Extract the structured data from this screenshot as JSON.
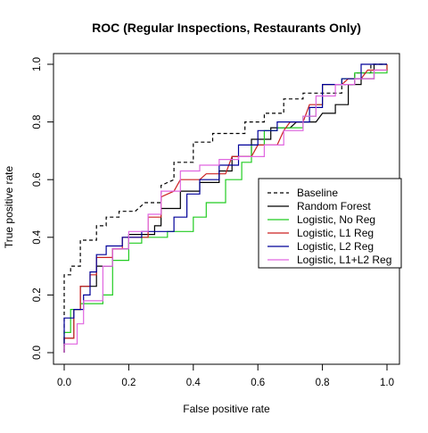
{
  "chart_data": {
    "type": "line",
    "title": "ROC (Regular Inspections, Restaurants Only)",
    "xlabel": "False positive rate",
    "ylabel": "True positive rate",
    "xlim": [
      0,
      1
    ],
    "ylim": [
      0,
      1
    ],
    "xticks": [
      "0.0",
      "0.2",
      "0.4",
      "0.6",
      "0.8",
      "1.0"
    ],
    "yticks": [
      "0.0",
      "0.2",
      "0.4",
      "0.6",
      "0.8",
      "1.0"
    ],
    "legend_position": "right",
    "grid": false,
    "series": [
      {
        "name": "Baseline",
        "color": "#000000",
        "dash": true,
        "points": [
          [
            0,
            0
          ],
          [
            0,
            0.27
          ],
          [
            0.02,
            0.27
          ],
          [
            0.02,
            0.3
          ],
          [
            0.05,
            0.3
          ],
          [
            0.05,
            0.39
          ],
          [
            0.1,
            0.39
          ],
          [
            0.1,
            0.44
          ],
          [
            0.13,
            0.44
          ],
          [
            0.13,
            0.47
          ],
          [
            0.17,
            0.47
          ],
          [
            0.17,
            0.49
          ],
          [
            0.22,
            0.49
          ],
          [
            0.25,
            0.52
          ],
          [
            0.3,
            0.52
          ],
          [
            0.3,
            0.58
          ],
          [
            0.34,
            0.6
          ],
          [
            0.34,
            0.66
          ],
          [
            0.4,
            0.66
          ],
          [
            0.4,
            0.73
          ],
          [
            0.46,
            0.73
          ],
          [
            0.46,
            0.76
          ],
          [
            0.56,
            0.76
          ],
          [
            0.56,
            0.8
          ],
          [
            0.62,
            0.8
          ],
          [
            0.62,
            0.83
          ],
          [
            0.68,
            0.83
          ],
          [
            0.68,
            0.88
          ],
          [
            0.74,
            0.88
          ],
          [
            0.74,
            0.9
          ],
          [
            0.86,
            0.9
          ],
          [
            0.86,
            0.93
          ],
          [
            0.9,
            0.93
          ],
          [
            0.9,
            0.97
          ],
          [
            0.95,
            0.97
          ],
          [
            0.95,
            1.0
          ],
          [
            1.0,
            1.0
          ]
        ]
      },
      {
        "name": "Random Forest",
        "color": "#000000",
        "dash": false,
        "points": [
          [
            0,
            0
          ],
          [
            0,
            0.05
          ],
          [
            0.03,
            0.05
          ],
          [
            0.03,
            0.15
          ],
          [
            0.05,
            0.15
          ],
          [
            0.05,
            0.23
          ],
          [
            0.1,
            0.23
          ],
          [
            0.1,
            0.3
          ],
          [
            0.15,
            0.3
          ],
          [
            0.15,
            0.36
          ],
          [
            0.2,
            0.36
          ],
          [
            0.2,
            0.41
          ],
          [
            0.28,
            0.41
          ],
          [
            0.28,
            0.44
          ],
          [
            0.3,
            0.44
          ],
          [
            0.3,
            0.5
          ],
          [
            0.36,
            0.5
          ],
          [
            0.36,
            0.56
          ],
          [
            0.42,
            0.56
          ],
          [
            0.42,
            0.59
          ],
          [
            0.48,
            0.59
          ],
          [
            0.48,
            0.63
          ],
          [
            0.52,
            0.63
          ],
          [
            0.52,
            0.68
          ],
          [
            0.58,
            0.68
          ],
          [
            0.58,
            0.74
          ],
          [
            0.64,
            0.74
          ],
          [
            0.64,
            0.78
          ],
          [
            0.7,
            0.78
          ],
          [
            0.72,
            0.8
          ],
          [
            0.78,
            0.8
          ],
          [
            0.8,
            0.83
          ],
          [
            0.84,
            0.83
          ],
          [
            0.84,
            0.86
          ],
          [
            0.88,
            0.86
          ],
          [
            0.88,
            0.93
          ],
          [
            0.92,
            0.93
          ],
          [
            0.92,
            0.95
          ],
          [
            0.96,
            0.95
          ],
          [
            0.96,
            1.0
          ],
          [
            1.0,
            1.0
          ]
        ]
      },
      {
        "name": "Logistic, No Reg",
        "color": "#22cc22",
        "dash": false,
        "points": [
          [
            0,
            0
          ],
          [
            0,
            0.07
          ],
          [
            0.02,
            0.07
          ],
          [
            0.02,
            0.15
          ],
          [
            0.05,
            0.15
          ],
          [
            0.05,
            0.17
          ],
          [
            0.12,
            0.17
          ],
          [
            0.12,
            0.2
          ],
          [
            0.15,
            0.2
          ],
          [
            0.15,
            0.32
          ],
          [
            0.2,
            0.32
          ],
          [
            0.2,
            0.38
          ],
          [
            0.24,
            0.38
          ],
          [
            0.24,
            0.4
          ],
          [
            0.32,
            0.4
          ],
          [
            0.32,
            0.42
          ],
          [
            0.4,
            0.42
          ],
          [
            0.4,
            0.47
          ],
          [
            0.44,
            0.47
          ],
          [
            0.44,
            0.52
          ],
          [
            0.5,
            0.52
          ],
          [
            0.5,
            0.6
          ],
          [
            0.55,
            0.6
          ],
          [
            0.55,
            0.66
          ],
          [
            0.58,
            0.66
          ],
          [
            0.58,
            0.72
          ],
          [
            0.62,
            0.72
          ],
          [
            0.62,
            0.77
          ],
          [
            0.66,
            0.77
          ],
          [
            0.66,
            0.78
          ],
          [
            0.74,
            0.78
          ],
          [
            0.74,
            0.82
          ],
          [
            0.78,
            0.82
          ],
          [
            0.78,
            0.86
          ],
          [
            0.8,
            0.86
          ],
          [
            0.8,
            0.93
          ],
          [
            0.86,
            0.93
          ],
          [
            0.86,
            0.95
          ],
          [
            0.9,
            0.95
          ],
          [
            0.9,
            0.97
          ],
          [
            1.0,
            0.97
          ],
          [
            1.0,
            1.0
          ]
        ]
      },
      {
        "name": "Logistic, L1 Reg",
        "color": "#cc2222",
        "dash": false,
        "points": [
          [
            0,
            0
          ],
          [
            0,
            0.05
          ],
          [
            0.03,
            0.05
          ],
          [
            0.03,
            0.15
          ],
          [
            0.05,
            0.15
          ],
          [
            0.05,
            0.23
          ],
          [
            0.08,
            0.23
          ],
          [
            0.08,
            0.27
          ],
          [
            0.1,
            0.27
          ],
          [
            0.1,
            0.33
          ],
          [
            0.15,
            0.33
          ],
          [
            0.15,
            0.36
          ],
          [
            0.18,
            0.36
          ],
          [
            0.18,
            0.4
          ],
          [
            0.26,
            0.4
          ],
          [
            0.26,
            0.47
          ],
          [
            0.3,
            0.47
          ],
          [
            0.3,
            0.54
          ],
          [
            0.34,
            0.56
          ],
          [
            0.36,
            0.6
          ],
          [
            0.42,
            0.6
          ],
          [
            0.44,
            0.62
          ],
          [
            0.5,
            0.62
          ],
          [
            0.52,
            0.68
          ],
          [
            0.58,
            0.68
          ],
          [
            0.6,
            0.72
          ],
          [
            0.66,
            0.72
          ],
          [
            0.68,
            0.77
          ],
          [
            0.7,
            0.8
          ],
          [
            0.74,
            0.8
          ],
          [
            0.76,
            0.86
          ],
          [
            0.8,
            0.86
          ],
          [
            0.8,
            0.93
          ],
          [
            0.86,
            0.93
          ],
          [
            0.88,
            0.95
          ],
          [
            0.92,
            0.95
          ],
          [
            0.94,
            0.98
          ],
          [
            1.0,
            0.98
          ],
          [
            1.0,
            1.0
          ]
        ]
      },
      {
        "name": "Logistic, L2 Reg",
        "color": "#000099",
        "dash": false,
        "points": [
          [
            0,
            0
          ],
          [
            0,
            0.12
          ],
          [
            0.03,
            0.12
          ],
          [
            0.03,
            0.15
          ],
          [
            0.06,
            0.15
          ],
          [
            0.06,
            0.2
          ],
          [
            0.08,
            0.2
          ],
          [
            0.08,
            0.28
          ],
          [
            0.1,
            0.28
          ],
          [
            0.1,
            0.34
          ],
          [
            0.13,
            0.34
          ],
          [
            0.13,
            0.37
          ],
          [
            0.18,
            0.37
          ],
          [
            0.18,
            0.4
          ],
          [
            0.24,
            0.4
          ],
          [
            0.24,
            0.42
          ],
          [
            0.34,
            0.42
          ],
          [
            0.34,
            0.47
          ],
          [
            0.38,
            0.47
          ],
          [
            0.38,
            0.55
          ],
          [
            0.42,
            0.55
          ],
          [
            0.42,
            0.6
          ],
          [
            0.48,
            0.6
          ],
          [
            0.48,
            0.65
          ],
          [
            0.54,
            0.65
          ],
          [
            0.54,
            0.72
          ],
          [
            0.6,
            0.72
          ],
          [
            0.6,
            0.77
          ],
          [
            0.66,
            0.77
          ],
          [
            0.66,
            0.8
          ],
          [
            0.76,
            0.8
          ],
          [
            0.76,
            0.85
          ],
          [
            0.8,
            0.85
          ],
          [
            0.8,
            0.93
          ],
          [
            0.86,
            0.93
          ],
          [
            0.86,
            0.95
          ],
          [
            0.92,
            0.95
          ],
          [
            0.92,
            1.0
          ],
          [
            1.0,
            1.0
          ]
        ]
      },
      {
        "name": "Logistic, L1+L2 Reg",
        "color": "#e066e0",
        "dash": false,
        "points": [
          [
            0,
            0
          ],
          [
            0,
            0.03
          ],
          [
            0.04,
            0.03
          ],
          [
            0.04,
            0.1
          ],
          [
            0.06,
            0.1
          ],
          [
            0.06,
            0.18
          ],
          [
            0.12,
            0.18
          ],
          [
            0.12,
            0.3
          ],
          [
            0.15,
            0.3
          ],
          [
            0.15,
            0.36
          ],
          [
            0.2,
            0.36
          ],
          [
            0.2,
            0.42
          ],
          [
            0.26,
            0.42
          ],
          [
            0.26,
            0.48
          ],
          [
            0.3,
            0.48
          ],
          [
            0.3,
            0.56
          ],
          [
            0.36,
            0.56
          ],
          [
            0.36,
            0.63
          ],
          [
            0.42,
            0.63
          ],
          [
            0.42,
            0.65
          ],
          [
            0.48,
            0.65
          ],
          [
            0.48,
            0.67
          ],
          [
            0.54,
            0.67
          ],
          [
            0.54,
            0.68
          ],
          [
            0.62,
            0.68
          ],
          [
            0.62,
            0.72
          ],
          [
            0.68,
            0.72
          ],
          [
            0.68,
            0.77
          ],
          [
            0.74,
            0.77
          ],
          [
            0.74,
            0.82
          ],
          [
            0.78,
            0.82
          ],
          [
            0.78,
            0.89
          ],
          [
            0.84,
            0.89
          ],
          [
            0.84,
            0.93
          ],
          [
            0.9,
            0.93
          ],
          [
            0.9,
            0.95
          ],
          [
            0.96,
            0.95
          ],
          [
            0.96,
            0.98
          ],
          [
            1.0,
            0.98
          ]
        ]
      }
    ]
  }
}
